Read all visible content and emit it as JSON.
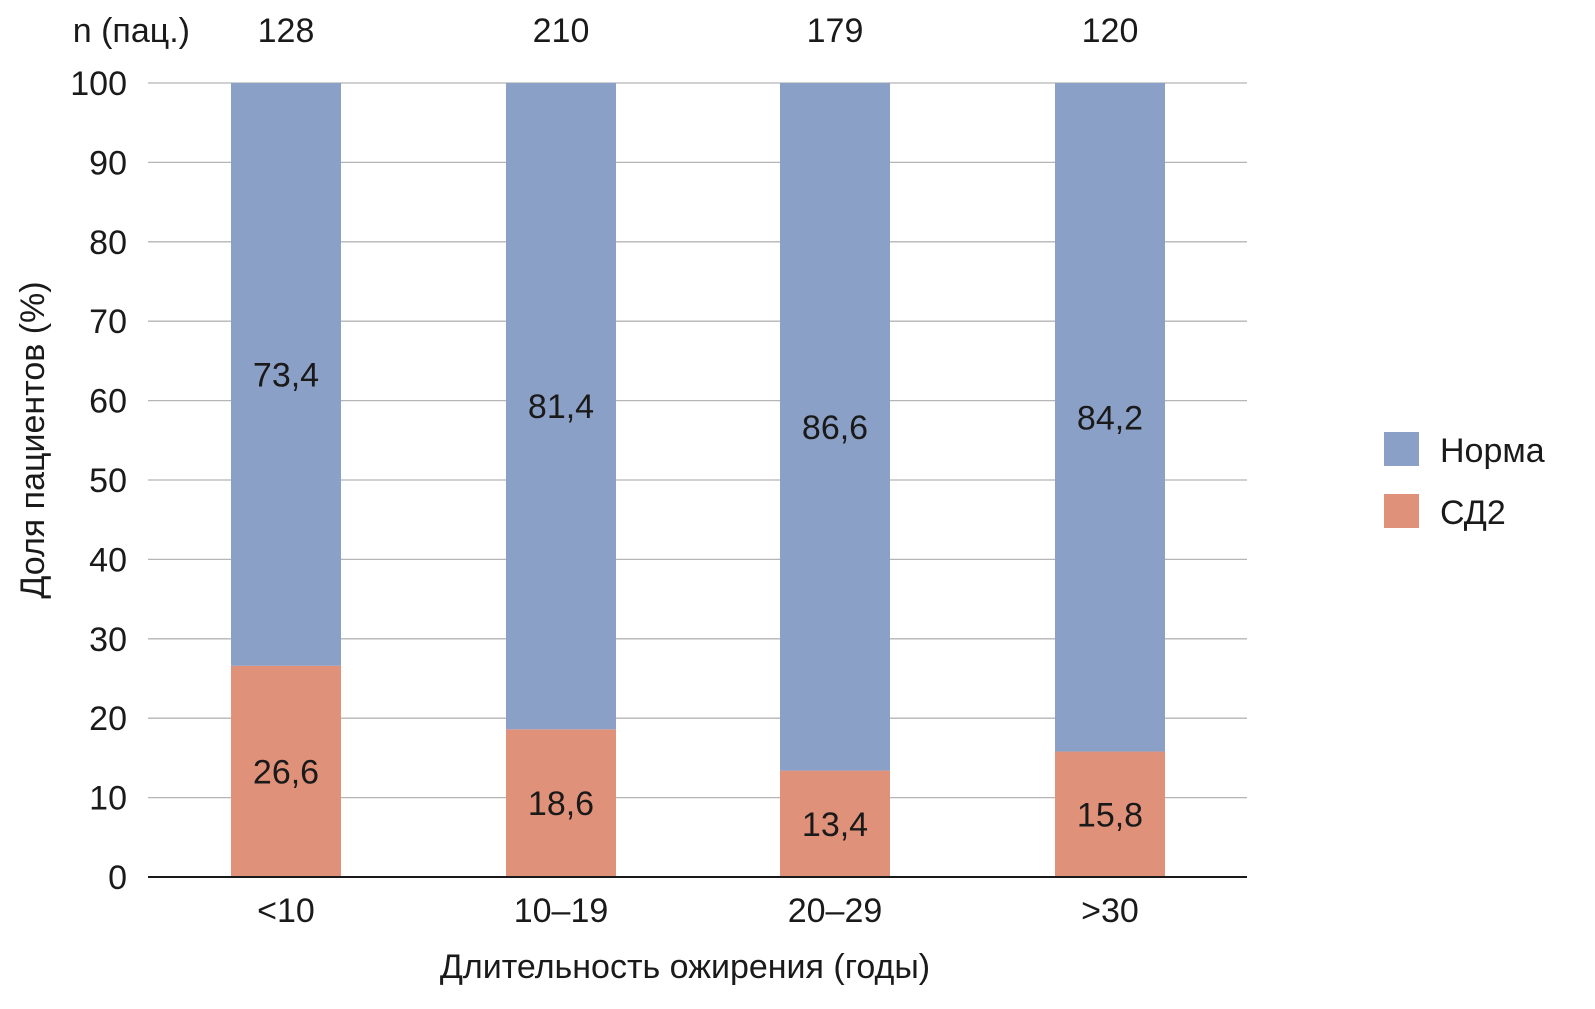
{
  "chart_data": {
    "type": "bar",
    "stacked": true,
    "title": "",
    "xlabel": "Длительность ожирения (годы)",
    "ylabel": "Доля пациентов (%)",
    "ylim": [
      0,
      100
    ],
    "yticks": [
      0,
      10,
      20,
      30,
      40,
      50,
      60,
      70,
      80,
      90,
      100
    ],
    "grid": true,
    "categories": [
      "<10",
      "10–19",
      "20–29",
      ">30"
    ],
    "n_label": "n (пац.)",
    "n_values": [
      "128",
      "210",
      "179",
      "120"
    ],
    "series": [
      {
        "name": "СД2",
        "color": "#E0917A",
        "values": [
          26.6,
          18.6,
          13.4,
          15.8
        ],
        "labels": [
          "26,6",
          "18,6",
          "13,4",
          "15,8"
        ]
      },
      {
        "name": "Норма",
        "color": "#8BA0C6",
        "values": [
          73.4,
          81.4,
          86.6,
          84.2
        ],
        "labels": [
          "73,4",
          "81,4",
          "86,6",
          "84,2"
        ]
      }
    ],
    "legend": {
      "placement": "right",
      "order": [
        "Норма",
        "СД2"
      ]
    }
  }
}
